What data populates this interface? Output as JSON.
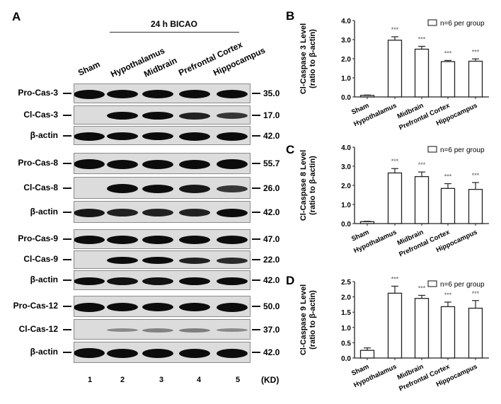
{
  "panel_a": {
    "letter": "A",
    "group_title": "24 h BICAO",
    "lanes": [
      "Sham",
      "Hypothalamus",
      "Midbrain",
      "Prefrontal Cortex",
      "Hippocampus"
    ],
    "lane_numbers": [
      "1",
      "2",
      "3",
      "4",
      "5"
    ],
    "kd_label": "(KD)",
    "rows": [
      {
        "label": "Pro-Cas-3",
        "kd": "35.0",
        "intensity": [
          1,
          0.95,
          0.9,
          0.88,
          0.98
        ]
      },
      {
        "label": "Cl-Cas-3",
        "kd": "17.0",
        "intensity": [
          0,
          0.8,
          0.75,
          0.65,
          0.55
        ]
      },
      {
        "label": "β-actin",
        "kd": "42.0",
        "intensity": [
          0.95,
          0.85,
          0.85,
          0.92,
          0.9
        ]
      },
      {
        "label": "Pro-Cas-8",
        "kd": "55.7",
        "intensity": [
          1,
          0.97,
          0.97,
          0.97,
          1
        ]
      },
      {
        "label": "Cl-Cas-8",
        "kd": "26.0",
        "intensity": [
          0,
          0.85,
          0.8,
          0.7,
          0.55
        ]
      },
      {
        "label": "β-actin",
        "kd": "42.0",
        "intensity": [
          0.7,
          0.65,
          0.65,
          0.65,
          0.75
        ]
      },
      {
        "label": "Pro-Cas-9",
        "kd": "47.0",
        "intensity": [
          0.95,
          0.98,
          0.98,
          0.95,
          0.97
        ]
      },
      {
        "label": "Cl-Cas-9",
        "kd": "22.0",
        "intensity": [
          0,
          0.8,
          0.75,
          0.65,
          0.6
        ]
      },
      {
        "label": "β-actin",
        "kd": "42.0",
        "intensity": [
          0.75,
          0.72,
          0.72,
          0.75,
          0.75
        ]
      },
      {
        "label": "Pro-Cas-12",
        "kd": "50.0",
        "intensity": [
          0.9,
          0.82,
          0.82,
          0.75,
          0.92
        ]
      },
      {
        "label": "Cl-Cas-12",
        "kd": "37.0",
        "intensity": [
          0,
          0.15,
          0.18,
          0.2,
          0.15
        ]
      },
      {
        "label": "β-actin",
        "kd": "42.0",
        "intensity": [
          1,
          0.92,
          0.92,
          0.95,
          0.95
        ]
      }
    ]
  },
  "chart_data": [
    {
      "panel": "B",
      "type": "bar",
      "title": "",
      "categories": [
        "Sham",
        "Hypothalamus",
        "Midbrain",
        "Prefrontal Cortex",
        "Hippocampus"
      ],
      "values": [
        0.08,
        2.97,
        2.5,
        1.85,
        1.87
      ],
      "errors": [
        0.02,
        0.18,
        0.15,
        0.06,
        0.12
      ],
      "significance": [
        "",
        "***",
        "***",
        "***",
        "***"
      ],
      "ylabel": "Cl-Caspase 3 Level (ratio to β-actin)",
      "ylabel_line1": "Cl-Caspase 3 Level",
      "ylabel_line2": "(ratio to β-actin)",
      "xlabel": "",
      "ylim": [
        0,
        4
      ],
      "yticks": [
        "0.0",
        "1.0",
        "2.0",
        "3.0",
        "4.0"
      ],
      "legend": "n=6 per group",
      "legend_position": "top-right",
      "grid": false
    },
    {
      "panel": "C",
      "type": "bar",
      "title": "",
      "categories": [
        "Sham",
        "Hypothalamus",
        "Midbrain",
        "Prefrontal Cortex",
        "Hippocampus"
      ],
      "values": [
        0.1,
        2.65,
        2.46,
        1.84,
        1.79
      ],
      "errors": [
        0.02,
        0.23,
        0.24,
        0.25,
        0.36
      ],
      "significance": [
        "",
        "***",
        "***",
        "***",
        "***"
      ],
      "ylabel": "Cl-Caspase 8 Level (ratio to β-actin)",
      "ylabel_line1": "Cl-Caspase 8 Level",
      "ylabel_line2": "(ratio to β-actin)",
      "xlabel": "",
      "ylim": [
        0,
        4
      ],
      "yticks": [
        "0.0",
        "1.0",
        "2.0",
        "3.0",
        "4.0"
      ],
      "legend": "n=6 per group",
      "legend_position": "top-right",
      "grid": false
    },
    {
      "panel": "D",
      "type": "bar",
      "title": "",
      "categories": [
        "Sham",
        "Hypothalamus",
        "Midbrain",
        "Prefrontal Cortex",
        "Hippocampus"
      ],
      "values": [
        0.25,
        2.12,
        1.95,
        1.68,
        1.63
      ],
      "errors": [
        0.08,
        0.23,
        0.1,
        0.15,
        0.25
      ],
      "significance": [
        "",
        "***",
        "***",
        "***",
        "***"
      ],
      "ylabel": "Cl-Caspase 9 Level (ratio to β-actin)",
      "ylabel_line1": "Cl-Caspase 9 Level",
      "ylabel_line2": "(ratio to β-actin)",
      "xlabel": "",
      "ylim": [
        0,
        2.5
      ],
      "yticks": [
        "0.0",
        "0.5",
        "1.0",
        "1.5",
        "2.0",
        "2.5"
      ],
      "legend": "n=6 per group",
      "legend_position": "top-right",
      "grid": false
    }
  ]
}
